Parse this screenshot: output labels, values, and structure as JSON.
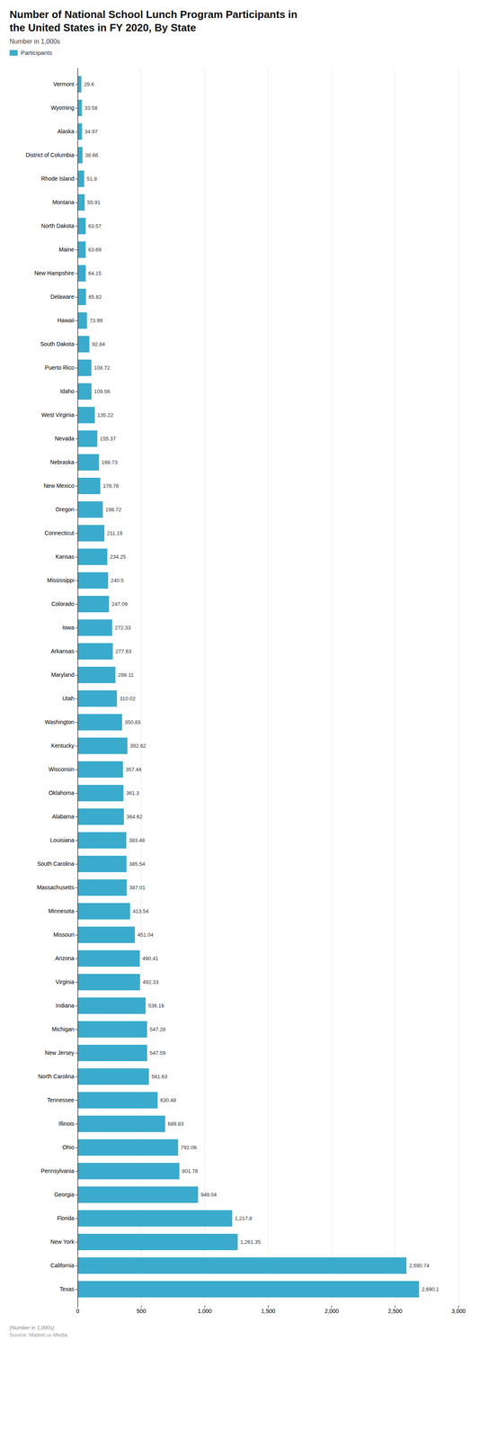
{
  "chart_data": {
    "type": "bar",
    "orientation": "horizontal",
    "title": "Number of National School Lunch Program Participants in\nthe United States in FY 2020, By State",
    "subtitle": "Number in 1,000s",
    "annotations": [
      "(Number in 1,000s)",
      "Source: Market.us Media"
    ],
    "categories": [
      "Vermont",
      "Wyoming",
      "Alaska",
      "District of Columbia",
      "Rhode Island",
      "Montana",
      "North Dakota",
      "Maine",
      "New Hampshire",
      "Delaware",
      "Hawaii",
      "South Dakota",
      "Puerto Rico",
      "Idaho",
      "West Virginia",
      "Nevada",
      "Nebraska",
      "New Mexico",
      "Oregon",
      "Connecticut",
      "Kansas",
      "Mississippi",
      "Colorado",
      "Iowa",
      "Arkansas",
      "Maryland",
      "Utah",
      "Washington",
      "Kentucky",
      "Wisconsin",
      "Oklahoma",
      "Alabama",
      "Louisiana",
      "South Carolina",
      "Massachusetts",
      "Minnesota",
      "Missouri",
      "Arizona",
      "Virginia",
      "Indiana",
      "Michigan",
      "New Jersey",
      "North Carolina",
      "Tennessee",
      "Illinois",
      "Ohio",
      "Pennsylvania",
      "Georgia",
      "Florida",
      "New York",
      "California",
      "Texas"
    ],
    "series": [
      {
        "name": "Participants",
        "color": "#3aabcc",
        "values": [
          29.6,
          33.58,
          34.97,
          38.66,
          51.8,
          55.91,
          63.57,
          63.69,
          64.15,
          65.82,
          73.99,
          92.84,
          108.72,
          109.56,
          135.22,
          155.37,
          168.73,
          178.76,
          198.72,
          211.19,
          234.25,
          240.5,
          247.09,
          272.33,
          277.63,
          298.11,
          310.02,
          350.83,
          392.62,
          357.44,
          361.3,
          364.62,
          383.48,
          385.54,
          387.01,
          413.54,
          451.04,
          490.41,
          492.33,
          536.16,
          547.28,
          547.59,
          561.63,
          630.48,
          689.83,
          792.06,
          801.78,
          949.04,
          1217.8,
          1261.35,
          2590.74,
          2690.1
        ],
        "value_labels": [
          "29.6",
          "33.58",
          "34.97",
          "38.66",
          "51.8",
          "55.91",
          "63.57",
          "63.69",
          "64.15",
          "65.82",
          "73.99",
          "92.84",
          "108.72",
          "109.56",
          "135.22",
          "155.37",
          "168.73",
          "178.76",
          "198.72",
          "211.19",
          "234.25",
          "240.5",
          "247.09",
          "272.33",
          "277.63",
          "298.11",
          "310.02",
          "350.83",
          "392.62",
          "357.44",
          "361.3",
          "364.62",
          "383.48",
          "385.54",
          "387.01",
          "413.54",
          "451.04",
          "490.41",
          "492.33",
          "536.16",
          "547.28",
          "547.59",
          "561.63",
          "630.48",
          "689.83",
          "792.06",
          "801.78",
          "949.04",
          "1,217.8",
          "1,261.35",
          "2,590.74",
          "2,690.1"
        ]
      }
    ],
    "xlim": [
      0,
      3000
    ],
    "xticks": [
      0,
      500,
      {
        "value": 1000,
        "label": "1,000"
      },
      {
        "value": 1500,
        "label": "1,500"
      },
      {
        "value": 2000,
        "label": "2,000"
      },
      {
        "value": 2500,
        "label": "2,500"
      },
      {
        "value": 3000,
        "label": "3,000"
      }
    ],
    "grid": true,
    "legend": "top-left",
    "data_labels": true
  }
}
